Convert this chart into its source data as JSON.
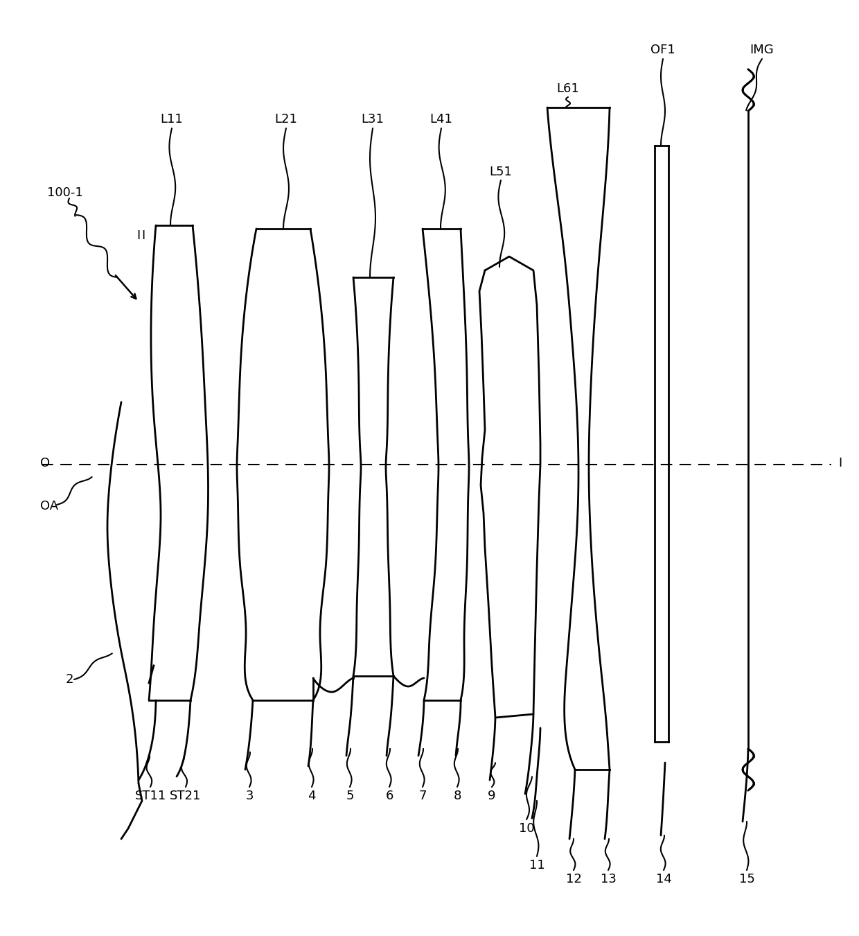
{
  "bg_color": "#ffffff",
  "line_color": "#000000",
  "figsize": [
    12.4,
    13.5
  ],
  "dpi": 100,
  "xlim": [
    0,
    1240
  ],
  "ylim": [
    0,
    1350
  ]
}
